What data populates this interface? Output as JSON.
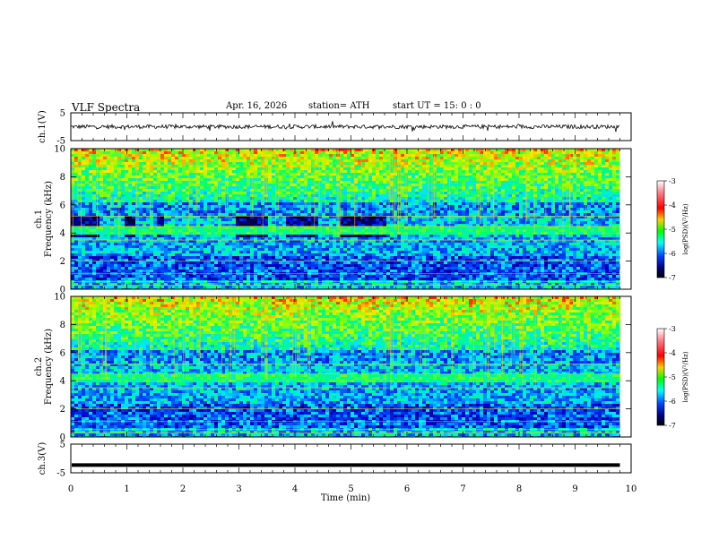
{
  "header": {
    "title": "VLF  Spectra",
    "date": "Apr. 16, 2026",
    "station": "station= ATH",
    "start": "start  UT  =    15: 0   : 0"
  },
  "chart_data": [
    {
      "type": "line",
      "title": "",
      "ylabel": "ch.1(V)",
      "ylim": [
        -5,
        5
      ],
      "yticks": [
        "5",
        "-5"
      ],
      "xlim": [
        0,
        10
      ],
      "description_values": "noisy waveform centred near 0 V, amplitude about ±1 V"
    },
    {
      "type": "heatmap",
      "ylabel": "ch.1\nFrequency (kHz)",
      "ylabel_lines": [
        "ch.1",
        "Frequency (kHz)"
      ],
      "ylim": [
        0,
        10
      ],
      "yticks": [
        "0",
        "2",
        "4",
        "6",
        "8",
        "10"
      ],
      "xlim": [
        0,
        10
      ],
      "xmax_data": 9.8,
      "transmitter_off_intervals_min": [
        [
          0.0,
          0.5
        ],
        [
          0.95,
          1.1
        ],
        [
          1.5,
          1.65
        ],
        [
          2.9,
          3.5
        ],
        [
          3.8,
          4.4
        ],
        [
          4.75,
          5.6
        ]
      ],
      "colorbar": {
        "label": "log(PSD)(V²/Hz)",
        "range": [
          -7,
          -3
        ],
        "ticks": [
          "-3",
          "-4",
          "-5",
          "-6",
          "-7"
        ],
        "colors": [
          "#ff9aa8",
          "#ff0000",
          "#ffcc00",
          "#00ff00",
          "#00ffff",
          "#0040ff",
          "#000080",
          "#000000"
        ]
      }
    },
    {
      "type": "heatmap",
      "ylabel": "ch.2\nFrequency (kHz)",
      "ylabel_lines": [
        "ch.2",
        "Frequency (kHz)"
      ],
      "ylim": [
        0,
        10
      ],
      "yticks": [
        "0",
        "2",
        "4",
        "6",
        "8",
        "10"
      ],
      "xlim": [
        0,
        10
      ],
      "xmax_data": 9.8,
      "colorbar": {
        "label": "log(PSD)(V²/Hz)",
        "range": [
          -7,
          -3
        ],
        "ticks": [
          "-3",
          "-4",
          "-5",
          "-6",
          "-7"
        ]
      }
    },
    {
      "type": "line",
      "ylabel": "ch.3(V)",
      "ylim": [
        -5,
        5
      ],
      "yticks": [
        "5",
        "-5"
      ],
      "xlim": [
        0,
        10
      ],
      "xlabel": "Time  (min)",
      "xticks": [
        "0",
        "1",
        "2",
        "3",
        "4",
        "5",
        "6",
        "7",
        "8",
        "9",
        "10"
      ],
      "description_values": "flat thick trace at about -2.3 V"
    }
  ]
}
